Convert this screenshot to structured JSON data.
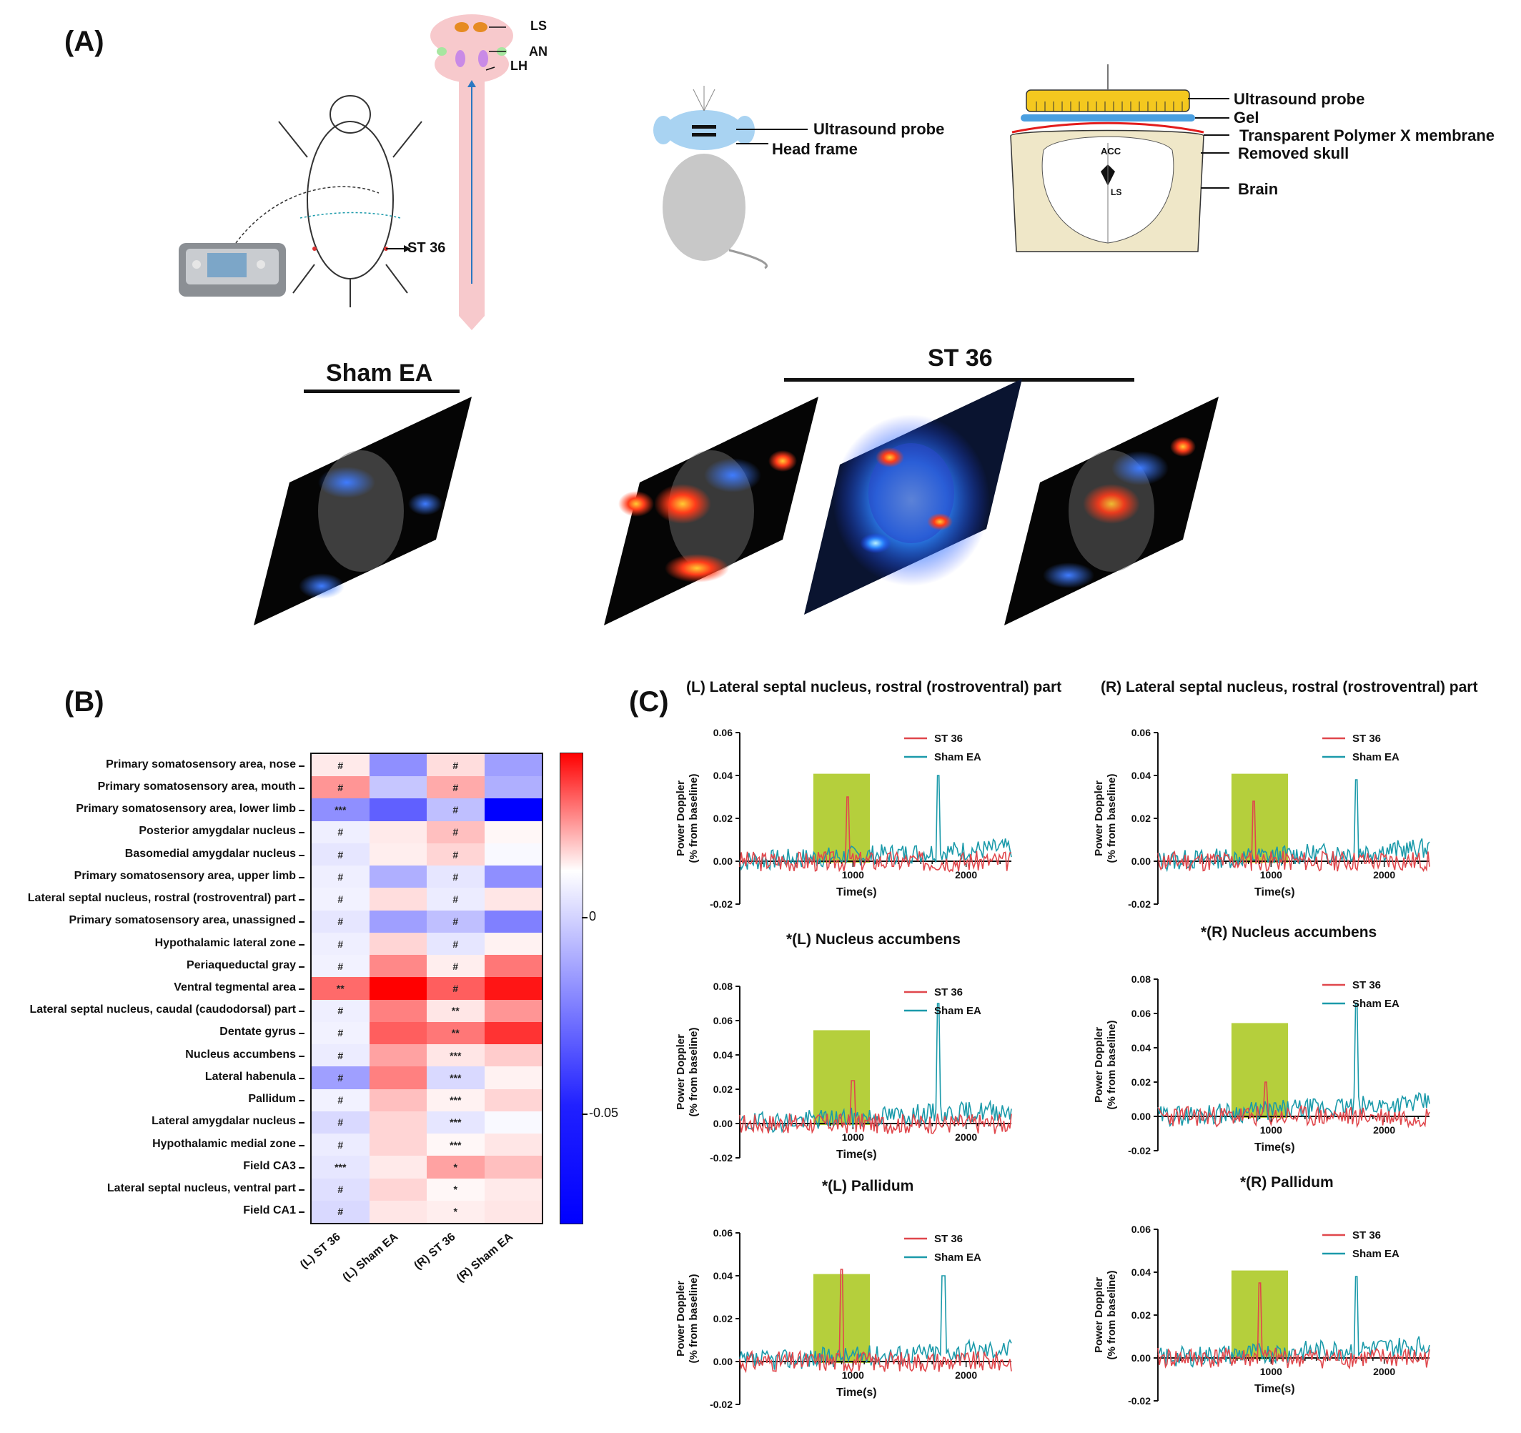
{
  "panel_a": {
    "label": "(A)",
    "schematic_labels": {
      "ls": "LS",
      "an": "AN",
      "lh": "LH",
      "st36": "ST 36"
    },
    "mouse_labels": {
      "probe": "Ultrasound probe",
      "head_frame": "Head frame"
    },
    "brain_labels": {
      "probe": "Ultrasound probe",
      "gel": "Gel",
      "membrane": "Transparent Polymer X membrane",
      "skull": "Removed skull",
      "brain": "Brain",
      "acc": "ACC",
      "ls": "LS"
    },
    "sham_title": "Sham EA",
    "st36_title": "ST 36"
  },
  "panel_b": {
    "label": "(B)",
    "columns": [
      "(L) ST 36",
      "(L) Sham EA",
      "(R) ST 36",
      "(R) Sham EA"
    ],
    "colorbar_ticks": [
      "0",
      "-0.05"
    ],
    "colors": {
      "high": "#ff0000",
      "mid": "#ffffff",
      "low": "#0000ff"
    },
    "rows": [
      {
        "name": "Primary somatosensory area, nose",
        "values": [
          0.005,
          -0.035,
          0.008,
          -0.03
        ],
        "marks": [
          "#",
          "",
          "#",
          ""
        ]
      },
      {
        "name": "Primary somatosensory area, mouth",
        "values": [
          0.025,
          -0.018,
          0.02,
          -0.025
        ],
        "marks": [
          "#",
          "",
          "#",
          ""
        ]
      },
      {
        "name": "Primary somatosensory area, lower limb",
        "values": [
          -0.035,
          -0.05,
          -0.02,
          -0.08
        ],
        "marks": [
          "***",
          "",
          "#",
          ""
        ]
      },
      {
        "name": "Posterior amygdalar nucleus",
        "values": [
          -0.005,
          0.005,
          0.015,
          0.002
        ],
        "marks": [
          "#",
          "",
          "#",
          ""
        ]
      },
      {
        "name": "Basomedial amygdalar nucleus",
        "values": [
          -0.008,
          0.004,
          0.01,
          -0.002
        ],
        "marks": [
          "#",
          "",
          "#",
          ""
        ]
      },
      {
        "name": "Primary somatosensory area, upper limb",
        "values": [
          -0.005,
          -0.025,
          -0.008,
          -0.035
        ],
        "marks": [
          "#",
          "",
          "#",
          ""
        ]
      },
      {
        "name": "Lateral septal nucleus, rostral (rostroventral) part",
        "values": [
          -0.004,
          0.008,
          -0.006,
          0.006
        ],
        "marks": [
          "#",
          "",
          "#",
          ""
        ]
      },
      {
        "name": "Primary somatosensory area, unassigned",
        "values": [
          -0.008,
          -0.03,
          -0.02,
          -0.04
        ],
        "marks": [
          "#",
          "",
          "#",
          ""
        ]
      },
      {
        "name": "Hypothalamic lateral zone",
        "values": [
          -0.005,
          0.01,
          -0.008,
          0.003
        ],
        "marks": [
          "#",
          "",
          "#",
          ""
        ]
      },
      {
        "name": "Periaqueductal gray",
        "values": [
          -0.004,
          0.028,
          0.004,
          0.032
        ],
        "marks": [
          "#",
          "",
          "#",
          ""
        ]
      },
      {
        "name": "Ventral tegmental area",
        "values": [
          0.035,
          0.06,
          0.038,
          0.055
        ],
        "marks": [
          "**",
          "",
          "#",
          ""
        ]
      },
      {
        "name": "Lateral septal nucleus, caudal (caudodorsal) part",
        "values": [
          -0.005,
          0.03,
          0.006,
          0.025
        ],
        "marks": [
          "#",
          "",
          "**",
          ""
        ]
      },
      {
        "name": "Dentate gyrus",
        "values": [
          -0.004,
          0.038,
          0.032,
          0.048
        ],
        "marks": [
          "#",
          "",
          "**",
          ""
        ]
      },
      {
        "name": "Nucleus accumbens",
        "values": [
          -0.006,
          0.022,
          0.006,
          0.012
        ],
        "marks": [
          "#",
          "",
          "***",
          ""
        ]
      },
      {
        "name": "Lateral habenula",
        "values": [
          -0.03,
          0.03,
          -0.012,
          0.003
        ],
        "marks": [
          "#",
          "",
          "***",
          ""
        ]
      },
      {
        "name": "Pallidum",
        "values": [
          -0.004,
          0.015,
          0.003,
          0.01
        ],
        "marks": [
          "#",
          "",
          "***",
          ""
        ]
      },
      {
        "name": "Lateral amygdalar nucleus",
        "values": [
          -0.012,
          0.01,
          -0.008,
          -0.002
        ],
        "marks": [
          "#",
          "",
          "***",
          ""
        ]
      },
      {
        "name": "Hypothalamic medial zone",
        "values": [
          -0.006,
          0.01,
          0.002,
          0.006
        ],
        "marks": [
          "#",
          "",
          "***",
          ""
        ]
      },
      {
        "name": "Field CA3",
        "values": [
          -0.008,
          0.005,
          0.022,
          0.015
        ],
        "marks": [
          "***",
          "",
          "*",
          ""
        ]
      },
      {
        "name": "Lateral septal nucleus, ventral part",
        "values": [
          -0.01,
          0.01,
          0.002,
          0.005
        ],
        "marks": [
          "#",
          "",
          "*",
          ""
        ]
      },
      {
        "name": "Field CA1",
        "values": [
          -0.012,
          0.006,
          0.004,
          0.006
        ],
        "marks": [
          "#",
          "",
          "*",
          ""
        ]
      }
    ]
  },
  "panel_c": {
    "label": "(C)",
    "y_axis_title_1": "Power Doppler",
    "y_axis_title_2": "(% from baseline)",
    "x_axis_title": "Time(s)",
    "series_colors": {
      "st36": "#e0474c",
      "sham": "#1b9aaa"
    },
    "highlight_color": "#b5cf3c"
  },
  "chart_data": [
    {
      "type": "line",
      "title": "(L) Lateral septal nucleus, rostral (rostroventral) part",
      "xlabel": "Time(s)",
      "ylabel": "Power Doppler (% from baseline)",
      "ylim": [
        -0.02,
        0.06
      ],
      "yticks": [
        "0.06",
        "0.04",
        "0.02",
        "0.00",
        "-0.02"
      ],
      "xticks": [
        "1000",
        "2000"
      ],
      "xlim": [
        0,
        2400
      ],
      "highlight": [
        650,
        1150
      ],
      "series": [
        {
          "name": "ST 36",
          "peak": 0.03,
          "peak_x": 950,
          "seed": 3
        },
        {
          "name": "Sham EA",
          "peak": 0.04,
          "peak_x": 1750,
          "seed": 7
        }
      ]
    },
    {
      "type": "line",
      "title": "(R) Lateral septal nucleus, rostral (rostroventral) part",
      "xlabel": "Time(s)",
      "ylabel": "Power Doppler (% from baseline)",
      "ylim": [
        -0.02,
        0.06
      ],
      "yticks": [
        "0.06",
        "0.04",
        "0.02",
        "0.00",
        "-0.02"
      ],
      "xticks": [
        "1000",
        "2000"
      ],
      "xlim": [
        0,
        2400
      ],
      "highlight": [
        650,
        1150
      ],
      "series": [
        {
          "name": "ST 36",
          "peak": 0.028,
          "peak_x": 850,
          "seed": 11
        },
        {
          "name": "Sham EA",
          "peak": 0.038,
          "peak_x": 1750,
          "seed": 13
        }
      ]
    },
    {
      "type": "line",
      "title": "*(L) Nucleus accumbens",
      "xlabel": "Time(s)",
      "ylabel": "Power Doppler (% from baseline)",
      "ylim": [
        -0.02,
        0.08
      ],
      "yticks": [
        "0.08",
        "0.06",
        "0.04",
        "0.02",
        "0.00",
        "-0.02"
      ],
      "xticks": [
        "1000",
        "2000"
      ],
      "xlim": [
        0,
        2400
      ],
      "highlight": [
        650,
        1150
      ],
      "series": [
        {
          "name": "ST 36",
          "peak": 0.025,
          "peak_x": 1000,
          "seed": 17
        },
        {
          "name": "Sham EA",
          "peak": 0.07,
          "peak_x": 1750,
          "seed": 19
        }
      ]
    },
    {
      "type": "line",
      "title": "*(R) Nucleus accumbens",
      "xlabel": "Time(s)",
      "ylabel": "Power Doppler (% from baseline)",
      "ylim": [
        -0.02,
        0.08
      ],
      "yticks": [
        "0.08",
        "0.06",
        "0.04",
        "0.02",
        "0.00",
        "-0.02"
      ],
      "xticks": [
        "1000",
        "2000"
      ],
      "xlim": [
        0,
        2400
      ],
      "highlight": [
        650,
        1150
      ],
      "series": [
        {
          "name": "ST 36",
          "peak": 0.02,
          "peak_x": 950,
          "seed": 23
        },
        {
          "name": "Sham EA",
          "peak": 0.066,
          "peak_x": 1750,
          "seed": 29
        }
      ]
    },
    {
      "type": "line",
      "title": "*(L) Pallidum",
      "xlabel": "Time(s)",
      "ylabel": "Power Doppler (% from baseline)",
      "ylim": [
        -0.02,
        0.06
      ],
      "yticks": [
        "0.06",
        "0.04",
        "0.02",
        "0.00",
        "-0.02"
      ],
      "xticks": [
        "1000",
        "2000"
      ],
      "xlim": [
        0,
        2400
      ],
      "highlight": [
        650,
        1150
      ],
      "series": [
        {
          "name": "ST 36",
          "peak": 0.043,
          "peak_x": 900,
          "seed": 31
        },
        {
          "name": "Sham EA",
          "peak": 0.04,
          "peak_x": 1800,
          "seed": 37
        }
      ]
    },
    {
      "type": "line",
      "title": "*(R) Pallidum",
      "xlabel": "Time(s)",
      "ylabel": "Power Doppler (% from baseline)",
      "ylim": [
        -0.02,
        0.06
      ],
      "yticks": [
        "0.06",
        "0.04",
        "0.02",
        "0.00",
        "-0.02"
      ],
      "xticks": [
        "1000",
        "2000"
      ],
      "xlim": [
        0,
        2400
      ],
      "highlight": [
        650,
        1150
      ],
      "series": [
        {
          "name": "ST 36",
          "peak": 0.035,
          "peak_x": 900,
          "seed": 41
        },
        {
          "name": "Sham EA",
          "peak": 0.038,
          "peak_x": 1750,
          "seed": 43
        }
      ]
    }
  ]
}
